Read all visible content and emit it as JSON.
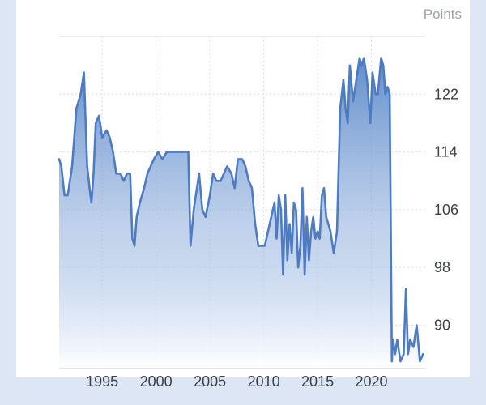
{
  "chart_data": {
    "type": "area",
    "unit_label": "Points",
    "xlim": [
      1991,
      2025
    ],
    "ylim": [
      84,
      130
    ],
    "x_ticks": [
      1995,
      2000,
      2005,
      2010,
      2015,
      2020
    ],
    "y_ticks": [
      90,
      98,
      106,
      114,
      122
    ],
    "grid": true,
    "colors": {
      "line": "#4d7cc3",
      "fill_top": "#5a88c8",
      "fill_bottom": "#ffffff",
      "grid": "#d9dde3"
    },
    "series": [
      {
        "x": [
          1991.0,
          1991.2,
          1991.5,
          1991.8,
          1992.2,
          1992.6,
          1993.0,
          1993.3,
          1993.6,
          1993.9,
          1994.0,
          1994.2,
          1994.4,
          1994.7,
          1995.0,
          1995.4,
          1995.7,
          1996.0,
          1996.3,
          1996.7,
          1997.0,
          1997.3,
          1997.6,
          1997.8,
          1998.0,
          1998.2,
          1998.5,
          1998.9,
          1999.2,
          1999.5,
          1999.8,
          2000.2,
          2000.6,
          2001.0,
          2001.4,
          2001.8,
          2002.2,
          2002.6,
          2003.0,
          2003.2,
          2003.5,
          2003.7,
          2004.0,
          2004.3,
          2004.6,
          2005.0,
          2005.3,
          2005.6,
          2006.0,
          2006.3,
          2006.6,
          2007.0,
          2007.3,
          2007.6,
          2008.0,
          2008.3,
          2008.6,
          2008.9,
          2009.2,
          2009.5,
          2009.8,
          2010.1,
          2010.4,
          2010.7,
          2011.0,
          2011.2,
          2011.4,
          2011.6,
          2011.8,
          2012.0,
          2012.2,
          2012.4,
          2012.6,
          2012.8,
          2013.0,
          2013.2,
          2013.4,
          2013.6,
          2013.8,
          2014.0,
          2014.2,
          2014.4,
          2014.6,
          2014.8,
          2015.0,
          2015.2,
          2015.4,
          2015.6,
          2015.8,
          2016.0,
          2016.2,
          2016.5,
          2016.8,
          2017.1,
          2017.4,
          2017.6,
          2017.8,
          2018.0,
          2018.3,
          2018.6,
          2018.9,
          2019.1,
          2019.3,
          2019.6,
          2019.9,
          2020.1,
          2020.4,
          2020.6,
          2020.9,
          2021.1,
          2021.3,
          2021.5,
          2021.7,
          2021.9,
          2022.0,
          2022.2,
          2022.4,
          2022.7,
          2023.0,
          2023.2,
          2023.4,
          2023.6,
          2023.9,
          2024.2,
          2024.5,
          2024.8
        ],
        "y": [
          113,
          112,
          108,
          108,
          112,
          120,
          122,
          125,
          112,
          108,
          107,
          111,
          118,
          119,
          116,
          117,
          116,
          114,
          111,
          111,
          110,
          111,
          111,
          102,
          101,
          105,
          107,
          109,
          111,
          112,
          113,
          114,
          113,
          114,
          114,
          114,
          114,
          114,
          114,
          101,
          106,
          108,
          111,
          106,
          105,
          108,
          111,
          110,
          110,
          111,
          112,
          111,
          109,
          113,
          113,
          112,
          110,
          109,
          104,
          101,
          101,
          101,
          103,
          105,
          107,
          102,
          108,
          106,
          97,
          108,
          99,
          104,
          100,
          107,
          106,
          98,
          101,
          109,
          97,
          105,
          99,
          103,
          105,
          102,
          103,
          102,
          108,
          109,
          105,
          104,
          103,
          100,
          103,
          120,
          124,
          120,
          118,
          126,
          121,
          124,
          127,
          126,
          127,
          124,
          118,
          125,
          122,
          122,
          127,
          126,
          122,
          123,
          122,
          85,
          88,
          86,
          88,
          85,
          86,
          95,
          86,
          88,
          87,
          90,
          85,
          86
        ],
        "name": ""
      }
    ]
  }
}
